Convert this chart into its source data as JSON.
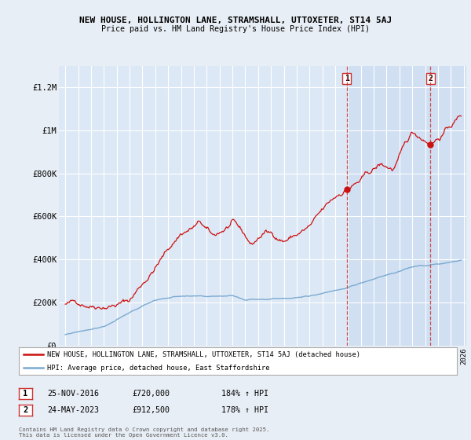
{
  "title1": "NEW HOUSE, HOLLINGTON LANE, STRAMSHALL, UTTOXETER, ST14 5AJ",
  "title2": "Price paid vs. HM Land Registry's House Price Index (HPI)",
  "legend_label1": "NEW HOUSE, HOLLINGTON LANE, STRAMSHALL, UTTOXETER, ST14 5AJ (detached house)",
  "legend_label2": "HPI: Average price, detached house, East Staffordshire",
  "annotation1_date": "25-NOV-2016",
  "annotation1_price": "£720,000",
  "annotation1_hpi": "184% ↑ HPI",
  "annotation2_date": "24-MAY-2023",
  "annotation2_price": "£912,500",
  "annotation2_hpi": "178% ↑ HPI",
  "footnote": "Contains HM Land Registry data © Crown copyright and database right 2025.\nThis data is licensed under the Open Government Licence v3.0.",
  "background_color": "#e8eef5",
  "plot_bg_color": "#dce8f5",
  "plot_bg_highlight": "#c8daf0",
  "line1_color": "#cc1111",
  "line2_color": "#7aaad0",
  "annotation_line_color": "#cc3333",
  "ylim": [
    0,
    1300000
  ],
  "yticks": [
    0,
    200000,
    400000,
    600000,
    800000,
    1000000,
    1200000
  ],
  "ytick_labels": [
    "£0",
    "£200K",
    "£400K",
    "£600K",
    "£800K",
    "£1M",
    "£1.2M"
  ],
  "ann1_x": 2016.9,
  "ann1_y": 720000,
  "ann2_x": 2023.4,
  "ann2_y": 912500,
  "xmin": 1994.5,
  "xmax": 2026.2
}
